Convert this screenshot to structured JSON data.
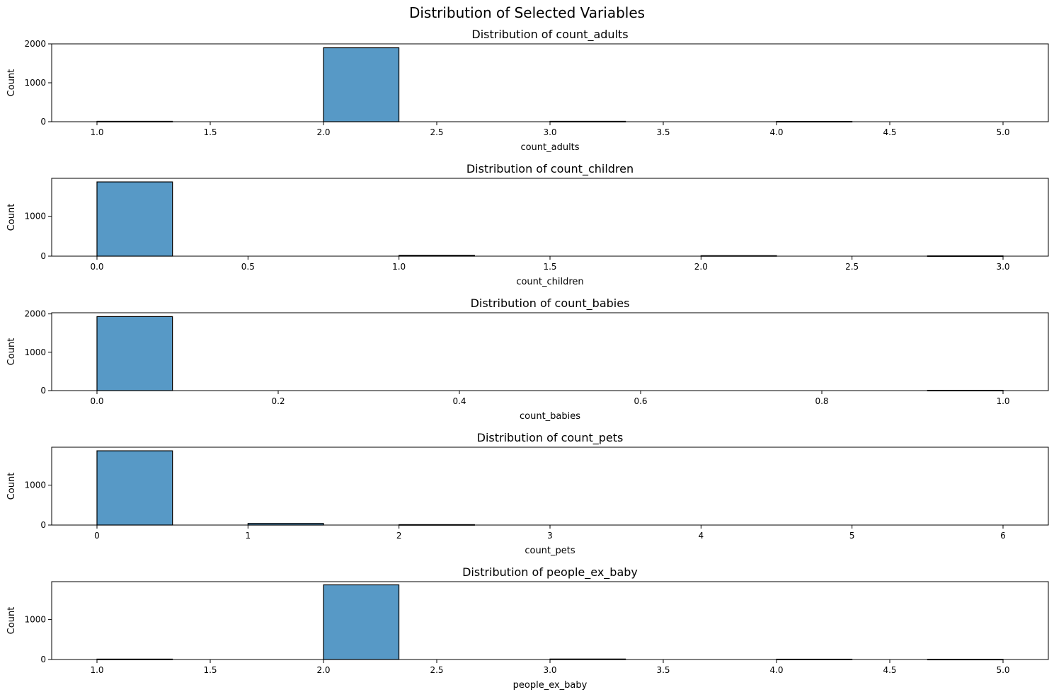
{
  "suptitle": "Distribution of Selected Variables",
  "colors": {
    "bar_fill": "#5799c6",
    "bar_edge": "#000000",
    "axis": "#000000",
    "background": "#ffffff"
  },
  "chart_data": [
    {
      "type": "bar",
      "title": "Distribution of count_adults",
      "xlabel": "count_adults",
      "ylabel": "Count",
      "xlim": [
        0.8,
        5.2
      ],
      "ylim": [
        0,
        2000
      ],
      "xticks": [
        "1.0",
        "1.5",
        "2.0",
        "2.5",
        "3.0",
        "3.5",
        "4.0",
        "4.5",
        "5.0"
      ],
      "yticks": [
        "0",
        "1000",
        "2000"
      ],
      "bins": [
        {
          "x0": 1.0,
          "x1": 1.333,
          "count": 10
        },
        {
          "x0": 2.0,
          "x1": 2.333,
          "count": 1900
        },
        {
          "x0": 3.0,
          "x1": 3.333,
          "count": 10
        },
        {
          "x0": 4.0,
          "x1": 4.333,
          "count": 8
        }
      ]
    },
    {
      "type": "bar",
      "title": "Distribution of count_children",
      "xlabel": "count_children",
      "ylabel": "Count",
      "xlim": [
        -0.15,
        3.15
      ],
      "ylim": [
        0,
        1950
      ],
      "xticks": [
        "0.0",
        "0.5",
        "1.0",
        "1.5",
        "2.0",
        "2.5",
        "3.0"
      ],
      "yticks": [
        "0",
        "1000"
      ],
      "bins": [
        {
          "x0": 0.0,
          "x1": 0.25,
          "count": 1860
        },
        {
          "x0": 1.0,
          "x1": 1.25,
          "count": 20
        },
        {
          "x0": 2.0,
          "x1": 2.25,
          "count": 12
        },
        {
          "x0": 2.75,
          "x1": 3.0,
          "count": 8
        }
      ]
    },
    {
      "type": "bar",
      "title": "Distribution of count_babies",
      "xlabel": "count_babies",
      "ylabel": "Count",
      "xlim": [
        -0.05,
        1.05
      ],
      "ylim": [
        0,
        2030
      ],
      "xticks": [
        "0.0",
        "0.2",
        "0.4",
        "0.6",
        "0.8",
        "1.0"
      ],
      "yticks": [
        "0",
        "1000",
        "2000"
      ],
      "bins": [
        {
          "x0": 0.0,
          "x1": 0.0833,
          "count": 1930
        },
        {
          "x0": 0.9167,
          "x1": 1.0,
          "count": 8
        }
      ]
    },
    {
      "type": "bar",
      "title": "Distribution of count_pets",
      "xlabel": "count_pets",
      "ylabel": "Count",
      "xlim": [
        -0.3,
        6.3
      ],
      "ylim": [
        0,
        1950
      ],
      "xticks": [
        "0",
        "1",
        "2",
        "3",
        "4",
        "5",
        "6"
      ],
      "yticks": [
        "0",
        "1000"
      ],
      "bins": [
        {
          "x0": 0.0,
          "x1": 0.5,
          "count": 1860
        },
        {
          "x0": 1.0,
          "x1": 1.5,
          "count": 40
        },
        {
          "x0": 2.0,
          "x1": 2.5,
          "count": 10
        }
      ]
    },
    {
      "type": "bar",
      "title": "Distribution of people_ex_baby",
      "xlabel": "people_ex_baby",
      "ylabel": "Count",
      "xlim": [
        0.8,
        5.2
      ],
      "ylim": [
        0,
        1950
      ],
      "xticks": [
        "1.0",
        "1.5",
        "2.0",
        "2.5",
        "3.0",
        "3.5",
        "4.0",
        "4.5",
        "5.0"
      ],
      "yticks": [
        "0",
        "1000"
      ],
      "bins": [
        {
          "x0": 1.0,
          "x1": 1.333,
          "count": 10
        },
        {
          "x0": 2.0,
          "x1": 2.333,
          "count": 1870
        },
        {
          "x0": 3.0,
          "x1": 3.333,
          "count": 12
        },
        {
          "x0": 4.0,
          "x1": 4.333,
          "count": 8
        },
        {
          "x0": 4.667,
          "x1": 5.0,
          "count": 6
        }
      ]
    }
  ]
}
